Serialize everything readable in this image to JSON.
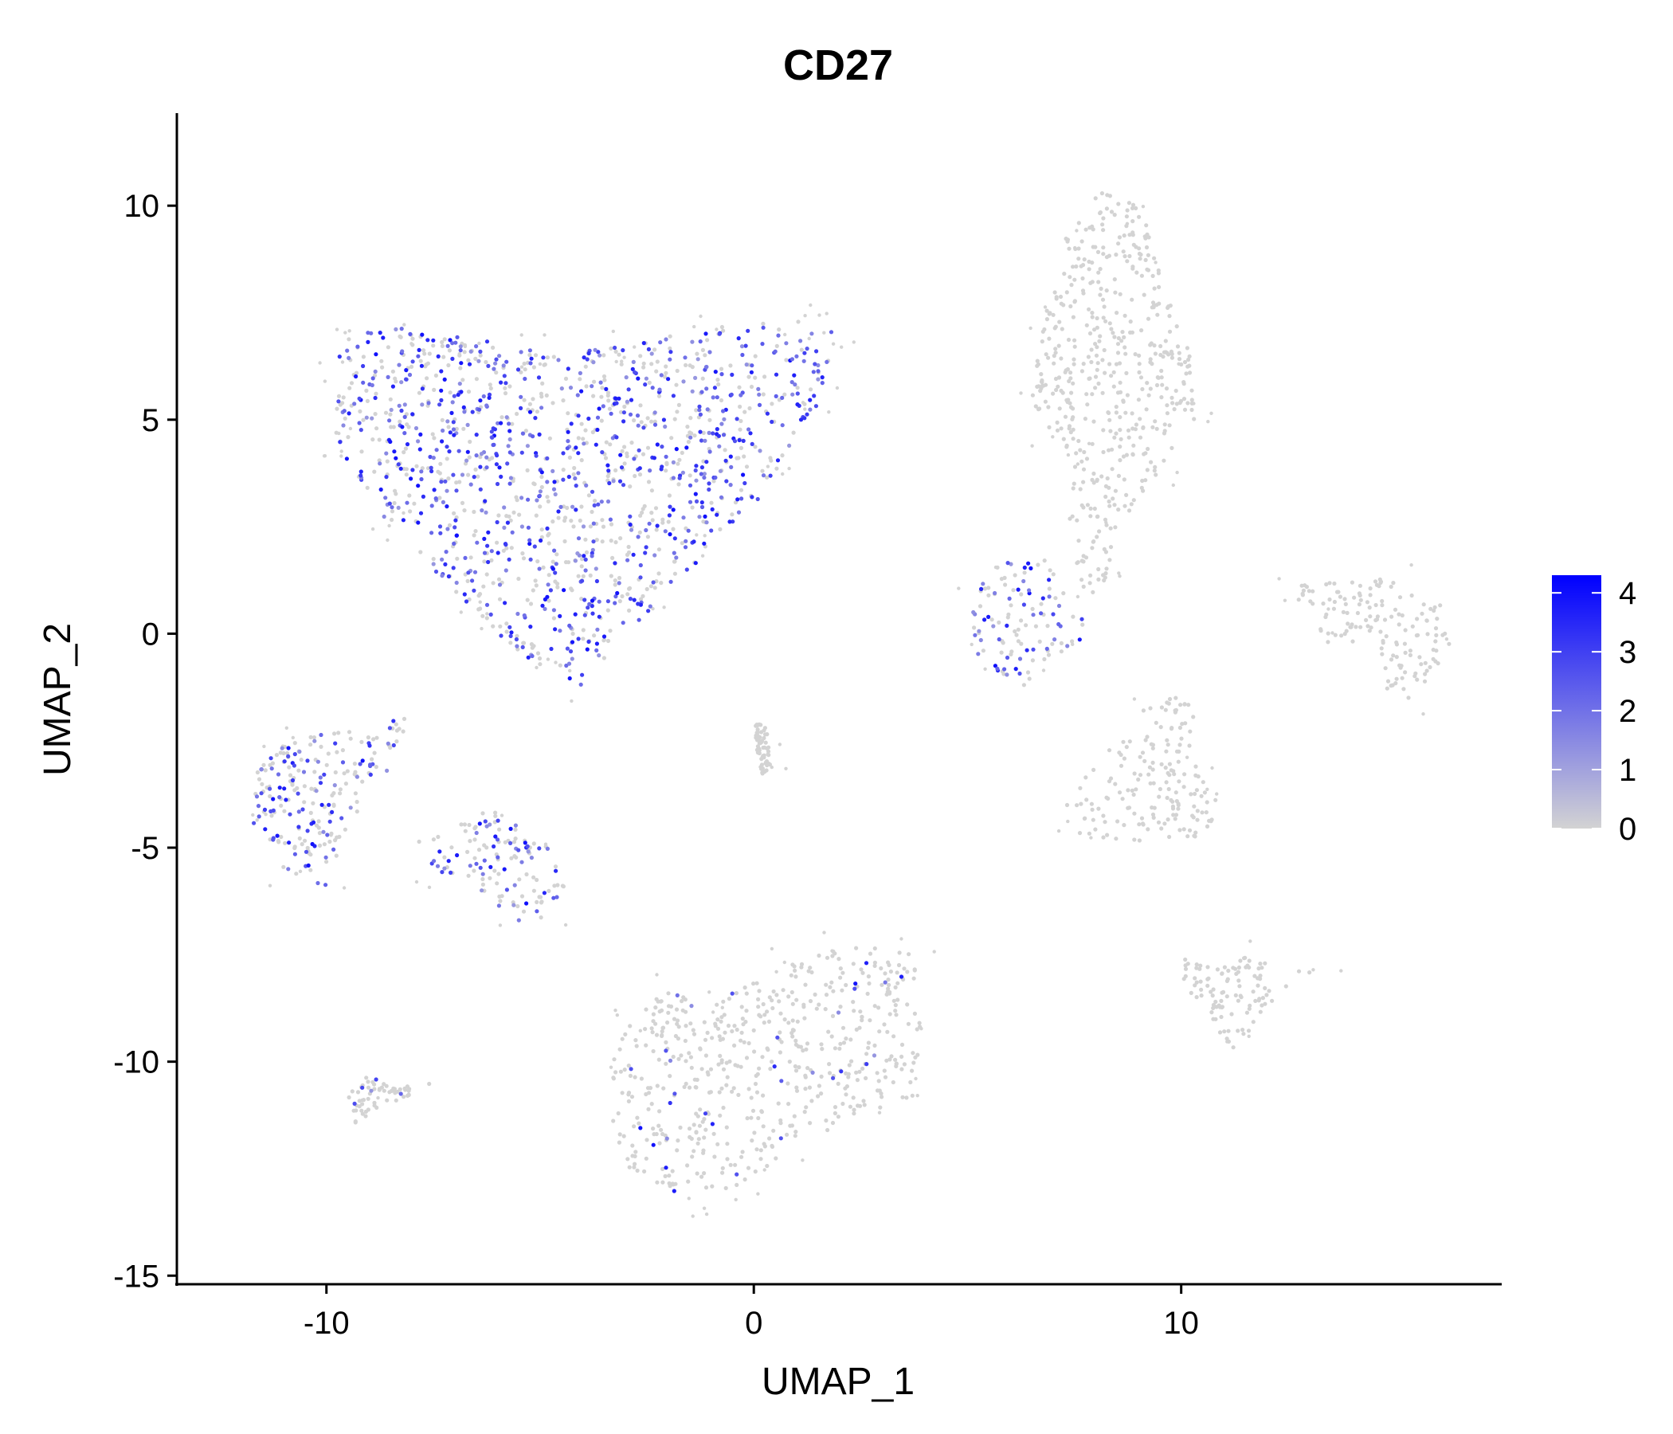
{
  "chart_data": {
    "type": "scatter",
    "title": "CD27",
    "xlabel": "UMAP_1",
    "ylabel": "UMAP_2",
    "xlim": [
      -13.5,
      17.5
    ],
    "ylim": [
      -15.2,
      12.2
    ],
    "xticks": [
      -10,
      0,
      10
    ],
    "xtick_labels": [
      "-10",
      "0",
      "10"
    ],
    "yticks": [
      10,
      5,
      0,
      -5,
      -10,
      -15
    ],
    "ytick_labels": [
      "10",
      "5",
      "0",
      "-5",
      "-10",
      "-15"
    ],
    "grid": false,
    "legend": {
      "position": "right",
      "type": "colorbar",
      "min": 0,
      "max": 4.3,
      "ticks": [
        0,
        1,
        2,
        3,
        4
      ],
      "tick_labels": [
        "0",
        "1",
        "2",
        "3",
        "4"
      ],
      "low_color": "#d3d3d3",
      "high_color": "#0000ff"
    },
    "clusters": [
      {
        "name": "large upper-left cluster",
        "expression": "high",
        "center": [
          -4.5,
          3.5
        ],
        "polygon": [
          [
            -9.9,
            6.0
          ],
          [
            -9.5,
            7.0
          ],
          [
            -8.0,
            7.2
          ],
          [
            -6.5,
            6.9
          ],
          [
            -5.0,
            6.6
          ],
          [
            -3.0,
            6.7
          ],
          [
            -1.0,
            7.2
          ],
          [
            1.0,
            7.3
          ],
          [
            1.9,
            7.1
          ],
          [
            1.6,
            5.5
          ],
          [
            0.5,
            3.5
          ],
          [
            -1.0,
            2.0
          ],
          [
            -2.5,
            0.5
          ],
          [
            -4.0,
            -1.2
          ],
          [
            -5.0,
            -1.0
          ],
          [
            -6.5,
            0.5
          ],
          [
            -8.5,
            2.5
          ],
          [
            -9.8,
            4.5
          ]
        ]
      },
      {
        "name": "left cluster",
        "expression": "medium",
        "center": [
          -9.7,
          -4.0
        ],
        "polygon": [
          [
            -11.7,
            -3.5
          ],
          [
            -11.5,
            -2.8
          ],
          [
            -10.5,
            -2.4
          ],
          [
            -9.0,
            -2.2
          ],
          [
            -8.0,
            -1.5
          ],
          [
            -8.3,
            -2.8
          ],
          [
            -9.5,
            -4.5
          ],
          [
            -10.0,
            -6.0
          ],
          [
            -11.0,
            -5.5
          ],
          [
            -11.7,
            -4.5
          ]
        ]
      },
      {
        "name": "middle-left cluster",
        "expression": "medium",
        "center": [
          -6.2,
          -5.2
        ],
        "polygon": [
          [
            -8.0,
            -4.8
          ],
          [
            -7.0,
            -4.5
          ],
          [
            -6.0,
            -4.0
          ],
          [
            -5.5,
            -4.2
          ],
          [
            -4.8,
            -5.0
          ],
          [
            -4.4,
            -5.8
          ],
          [
            -4.5,
            -6.6
          ],
          [
            -5.5,
            -6.7
          ],
          [
            -6.5,
            -6.0
          ],
          [
            -7.5,
            -5.5
          ]
        ]
      },
      {
        "name": "small lower-left cluster",
        "expression": "low",
        "center": [
          -9.0,
          -10.8
        ],
        "polygon": [
          [
            -9.6,
            -10.9
          ],
          [
            -9.0,
            -10.3
          ],
          [
            -8.5,
            -10.6
          ],
          [
            -7.5,
            -10.5
          ],
          [
            -8.5,
            -11.0
          ],
          [
            -9.3,
            -11.5
          ]
        ]
      },
      {
        "name": "small central spot",
        "expression": "none",
        "center": [
          0.2,
          -2.5
        ],
        "polygon": [
          [
            0.0,
            -2.0
          ],
          [
            0.3,
            -2.2
          ],
          [
            0.4,
            -3.2
          ],
          [
            0.2,
            -3.3
          ],
          [
            0.05,
            -2.6
          ]
        ]
      },
      {
        "name": "large lower cluster",
        "expression": "low",
        "center": [
          -0.3,
          -10.5
        ],
        "polygon": [
          [
            -3.3,
            -10.0
          ],
          [
            -3.0,
            -9.0
          ],
          [
            -2.0,
            -8.3
          ],
          [
            -1.0,
            -8.7
          ],
          [
            0.5,
            -7.8
          ],
          [
            2.0,
            -7.3
          ],
          [
            3.8,
            -7.4
          ],
          [
            4.0,
            -8.8
          ],
          [
            3.8,
            -10.8
          ],
          [
            2.5,
            -11.3
          ],
          [
            1.0,
            -12.0
          ],
          [
            0.0,
            -12.8
          ],
          [
            -1.5,
            -13.2
          ],
          [
            -3.0,
            -12.5
          ],
          [
            -3.4,
            -11.0
          ]
        ]
      },
      {
        "name": "small right-middle cluster",
        "expression": "medium",
        "center": [
          6.3,
          0.5
        ],
        "polygon": [
          [
            5.0,
            1.0
          ],
          [
            6.0,
            1.8
          ],
          [
            7.0,
            1.7
          ],
          [
            7.6,
            1.0
          ],
          [
            7.8,
            0.0
          ],
          [
            7.2,
            -0.5
          ],
          [
            6.5,
            -1.3
          ],
          [
            5.8,
            -1.0
          ],
          [
            5.2,
            -0.5
          ]
        ]
      },
      {
        "name": "tall upper-right cluster",
        "expression": "none",
        "center": [
          8.2,
          7.0
        ],
        "polygon": [
          [
            6.5,
            5.5
          ],
          [
            6.8,
            7.5
          ],
          [
            7.3,
            9.3
          ],
          [
            8.0,
            10.4
          ],
          [
            9.0,
            10.0
          ],
          [
            9.6,
            8.5
          ],
          [
            10.2,
            6.5
          ],
          [
            10.4,
            5.0
          ],
          [
            9.5,
            3.8
          ],
          [
            8.5,
            2.5
          ],
          [
            8.2,
            1.0
          ],
          [
            7.7,
            0.8
          ],
          [
            7.3,
            2.0
          ],
          [
            7.5,
            4.0
          ],
          [
            6.8,
            4.8
          ]
        ]
      },
      {
        "name": "right-middle cluster",
        "expression": "none",
        "center": [
          9.2,
          -3.8
        ],
        "polygon": [
          [
            7.2,
            -4.0
          ],
          [
            7.8,
            -3.3
          ],
          [
            8.5,
            -2.5
          ],
          [
            9.3,
            -1.5
          ],
          [
            10.3,
            -1.5
          ],
          [
            10.3,
            -3.0
          ],
          [
            11.0,
            -4.0
          ],
          [
            10.5,
            -4.8
          ],
          [
            9.0,
            -4.9
          ],
          [
            7.5,
            -4.7
          ]
        ]
      },
      {
        "name": "far-right cluster",
        "expression": "none",
        "center": [
          14.8,
          -0.5
        ],
        "polygon": [
          [
            12.3,
            1.1
          ],
          [
            13.5,
            1.3
          ],
          [
            15.0,
            1.3
          ],
          [
            16.2,
            0.6
          ],
          [
            16.3,
            -0.3
          ],
          [
            15.5,
            -1.5
          ],
          [
            14.8,
            -1.5
          ],
          [
            14.6,
            -0.3
          ],
          [
            13.5,
            -0.3
          ],
          [
            13.0,
            0.5
          ]
        ]
      },
      {
        "name": "lower-right cluster",
        "expression": "none",
        "center": [
          11.3,
          -8.5
        ],
        "polygon": [
          [
            10.0,
            -7.5
          ],
          [
            10.8,
            -7.8
          ],
          [
            11.7,
            -7.5
          ],
          [
            12.5,
            -8.0
          ],
          [
            13.5,
            -7.5
          ],
          [
            12.0,
            -8.8
          ],
          [
            11.2,
            -9.8
          ],
          [
            10.5,
            -8.8
          ],
          [
            10.0,
            -8.3
          ]
        ]
      }
    ]
  }
}
